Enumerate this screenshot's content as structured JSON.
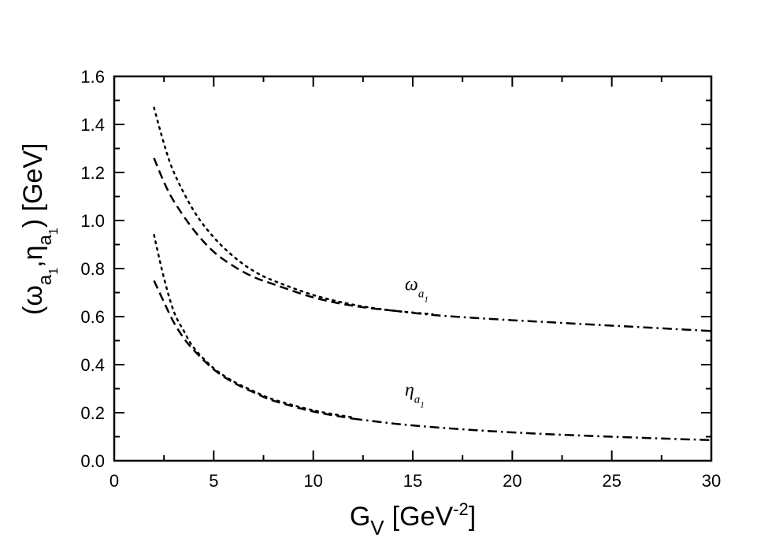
{
  "chart_data": {
    "type": "line",
    "xlabel": "G",
    "xlabel_subscript": "V",
    "xlabel_unit_prefix": "[GeV",
    "xlabel_unit_power": "-2",
    "xlabel_unit_suffix": "]",
    "ylabel_parts": [
      "(ω",
      "a",
      "1",
      ",η",
      "a",
      "1",
      ") [GeV]"
    ],
    "xlim": [
      0,
      30
    ],
    "ylim": [
      0.0,
      1.6
    ],
    "x_ticks": [
      0,
      5,
      10,
      15,
      20,
      25,
      30
    ],
    "x_tick_labels": [
      "0",
      "5",
      "10",
      "15",
      "20",
      "25",
      "30"
    ],
    "y_ticks": [
      0.0,
      0.2,
      0.4,
      0.6,
      0.8,
      1.0,
      1.2,
      1.4,
      1.6
    ],
    "y_tick_labels": [
      "0.0",
      "0.2",
      "0.4",
      "0.6",
      "0.8",
      "1.0",
      "1.2",
      "1.4",
      "1.6"
    ],
    "grid": false,
    "annotations": [
      {
        "text": "ω",
        "sub": "a",
        "subsub": "1",
        "x": 14.6,
        "y": 0.71
      },
      {
        "text": "η",
        "sub": "a",
        "subsub": "1",
        "x": 14.6,
        "y": 0.27
      }
    ],
    "series": [
      {
        "style": "dotted",
        "x": [
          2.0,
          2.5,
          3.0,
          4.0,
          5.0,
          6.0,
          7.0,
          8.0,
          10.0,
          12.0,
          14.0,
          16.0
        ],
        "y": [
          1.47,
          1.32,
          1.2,
          1.04,
          0.93,
          0.85,
          0.79,
          0.75,
          0.69,
          0.65,
          0.625,
          0.61
        ]
      },
      {
        "style": "dashed",
        "x": [
          2.0,
          2.5,
          3.0,
          4.0,
          5.0,
          6.0,
          7.0,
          8.0,
          10.0,
          12.0,
          14.0
        ],
        "y": [
          1.26,
          1.16,
          1.08,
          0.96,
          0.87,
          0.81,
          0.765,
          0.735,
          0.68,
          0.645,
          0.625
        ]
      },
      {
        "style": "dashdot",
        "x": [
          14.0,
          16.0,
          18.0,
          20.0,
          22.0,
          24.0,
          26.0,
          28.0,
          30.0
        ],
        "y": [
          0.625,
          0.607,
          0.595,
          0.585,
          0.576,
          0.567,
          0.558,
          0.549,
          0.54
        ]
      },
      {
        "style": "dotted",
        "x": [
          2.0,
          2.5,
          3.0,
          3.5,
          4.0,
          5.0,
          6.0,
          7.0,
          8.0,
          10.0,
          12.0
        ],
        "y": [
          0.94,
          0.76,
          0.62,
          0.54,
          0.47,
          0.385,
          0.33,
          0.29,
          0.255,
          0.21,
          0.18
        ]
      },
      {
        "style": "dashed",
        "x": [
          2.0,
          2.5,
          3.0,
          3.5,
          4.0,
          5.0,
          6.0,
          7.0,
          8.0,
          10.0,
          12.0
        ],
        "y": [
          0.75,
          0.66,
          0.575,
          0.51,
          0.46,
          0.38,
          0.325,
          0.285,
          0.25,
          0.205,
          0.175
        ]
      },
      {
        "style": "dashdot",
        "x": [
          12.0,
          14.0,
          16.0,
          18.0,
          20.0,
          22.0,
          24.0,
          26.0,
          28.0,
          30.0
        ],
        "y": [
          0.175,
          0.155,
          0.14,
          0.128,
          0.118,
          0.11,
          0.103,
          0.097,
          0.091,
          0.086
        ]
      }
    ]
  }
}
